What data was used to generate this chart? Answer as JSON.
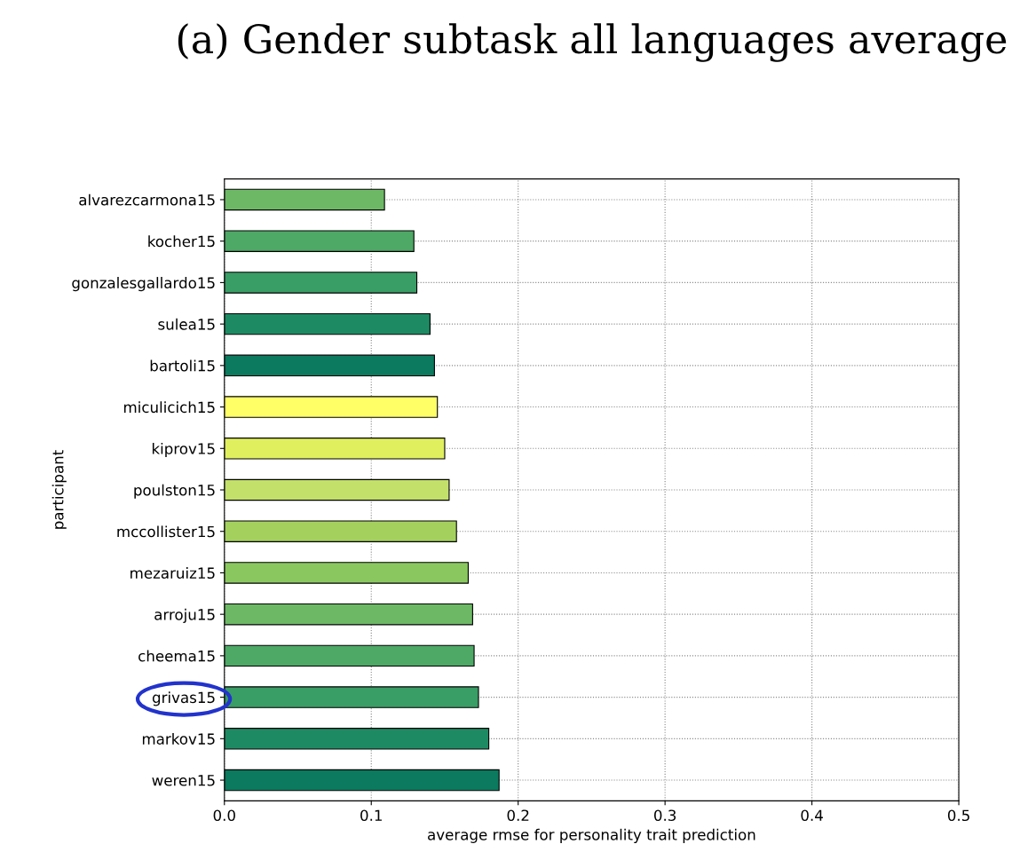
{
  "chart_data": {
    "type": "bar",
    "orientation": "horizontal",
    "title": "(a) Gender subtask all languages average",
    "xlabel": "average rmse for personality trait prediction",
    "ylabel": "participant",
    "categories": [
      "alvarezcarmona15",
      "kocher15",
      "gonzalesgallardo15",
      "sulea15",
      "bartoli15",
      "miculicich15",
      "kiprov15",
      "poulston15",
      "mccollister15",
      "mezaruiz15",
      "arroju15",
      "cheema15",
      "grivas15",
      "markov15",
      "weren15"
    ],
    "values": [
      0.109,
      0.129,
      0.131,
      0.14,
      0.143,
      0.145,
      0.15,
      0.153,
      0.158,
      0.166,
      0.169,
      0.17,
      0.173,
      0.18,
      0.187
    ],
    "colors": [
      "#6db865",
      "#4ea866",
      "#399d66",
      "#1e8a64",
      "#0b7a5e",
      "#ffff66",
      "#e0ef5e",
      "#c3e06a",
      "#a4d15e",
      "#8ac85f",
      "#6db865",
      "#4ea866",
      "#399d66",
      "#1e8a64",
      "#0b7a5e"
    ],
    "xlim": [
      0,
      0.5
    ],
    "xticks": [
      {
        "value": 0,
        "label": "0.0"
      },
      0.1,
      0.2,
      0.3,
      0.4,
      0.5
    ],
    "grid": true
  }
}
